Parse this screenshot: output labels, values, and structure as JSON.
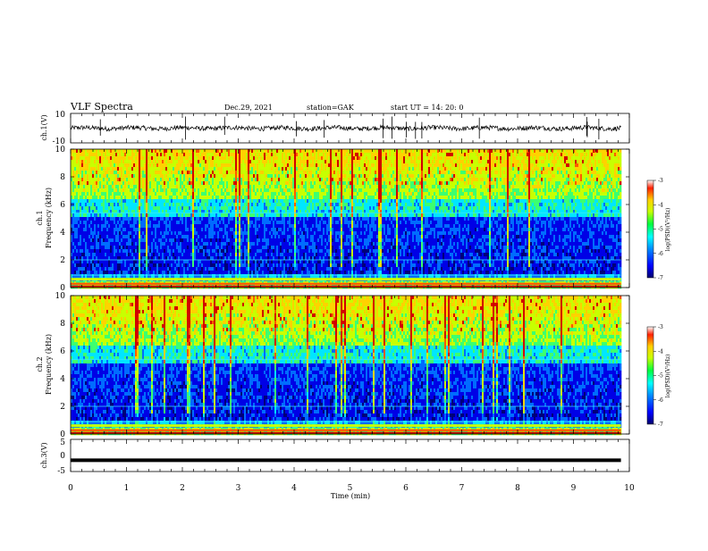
{
  "header": {
    "title": "VLF Spectra",
    "date": "Dec.29, 2021",
    "station": "station=GAK",
    "start": "start  UT =   14: 20: 0"
  },
  "chart_data": [
    {
      "type": "line",
      "name": "waveform-ch1",
      "ylabel": "ch.1(V)",
      "ylim": [
        -10,
        10
      ],
      "yticks": [
        "10",
        "-10"
      ],
      "x_range": [
        0,
        9.85
      ],
      "baseline": 0,
      "amplitude": 1.6
    },
    {
      "type": "heatmap",
      "name": "spectrogram-ch1",
      "ylabel_line1": "ch.1",
      "ylabel_line2": "Frequency (kHz)",
      "ylim": [
        0,
        10
      ],
      "yticks": [
        "0",
        "2",
        "4",
        "6",
        "8",
        "10"
      ],
      "x_range": [
        0,
        9.85
      ],
      "colorbar": {
        "label": "log(PSD)(V²/Hz)",
        "range": [
          -7,
          -3
        ],
        "ticks": [
          "-3",
          "-4",
          "-5",
          "-6",
          "-7"
        ]
      },
      "colors": [
        "#00007a",
        "#0000e6",
        "#006cff",
        "#00e6ff",
        "#3cff70",
        "#c8ff00",
        "#ffd200",
        "#ff5a00",
        "#d20000"
      ]
    },
    {
      "type": "heatmap",
      "name": "spectrogram-ch2",
      "ylabel_line1": "ch.2",
      "ylabel_line2": "Frequency (kHz)",
      "ylim": [
        0,
        10
      ],
      "yticks": [
        "0",
        "2",
        "4",
        "6",
        "8",
        "10"
      ],
      "x_range": [
        0,
        9.85
      ],
      "colorbar": {
        "label": "log(PSD)(V²/Hz)",
        "range": [
          -7,
          -3
        ],
        "ticks": [
          "-3",
          "-4",
          "-5",
          "-6",
          "-7"
        ]
      }
    },
    {
      "type": "line",
      "name": "waveform-ch3",
      "ylabel": "ch.3(V)",
      "ylim": [
        -5,
        5
      ],
      "yticks": [
        "5",
        "0",
        "-5"
      ],
      "x_range": [
        0,
        9.85
      ],
      "value": -1.5
    }
  ],
  "x_axis": {
    "label": "Time  (min)",
    "range": [
      0,
      10
    ],
    "ticks": [
      "0",
      "1",
      "2",
      "3",
      "4",
      "5",
      "6",
      "7",
      "8",
      "9",
      "10"
    ]
  }
}
